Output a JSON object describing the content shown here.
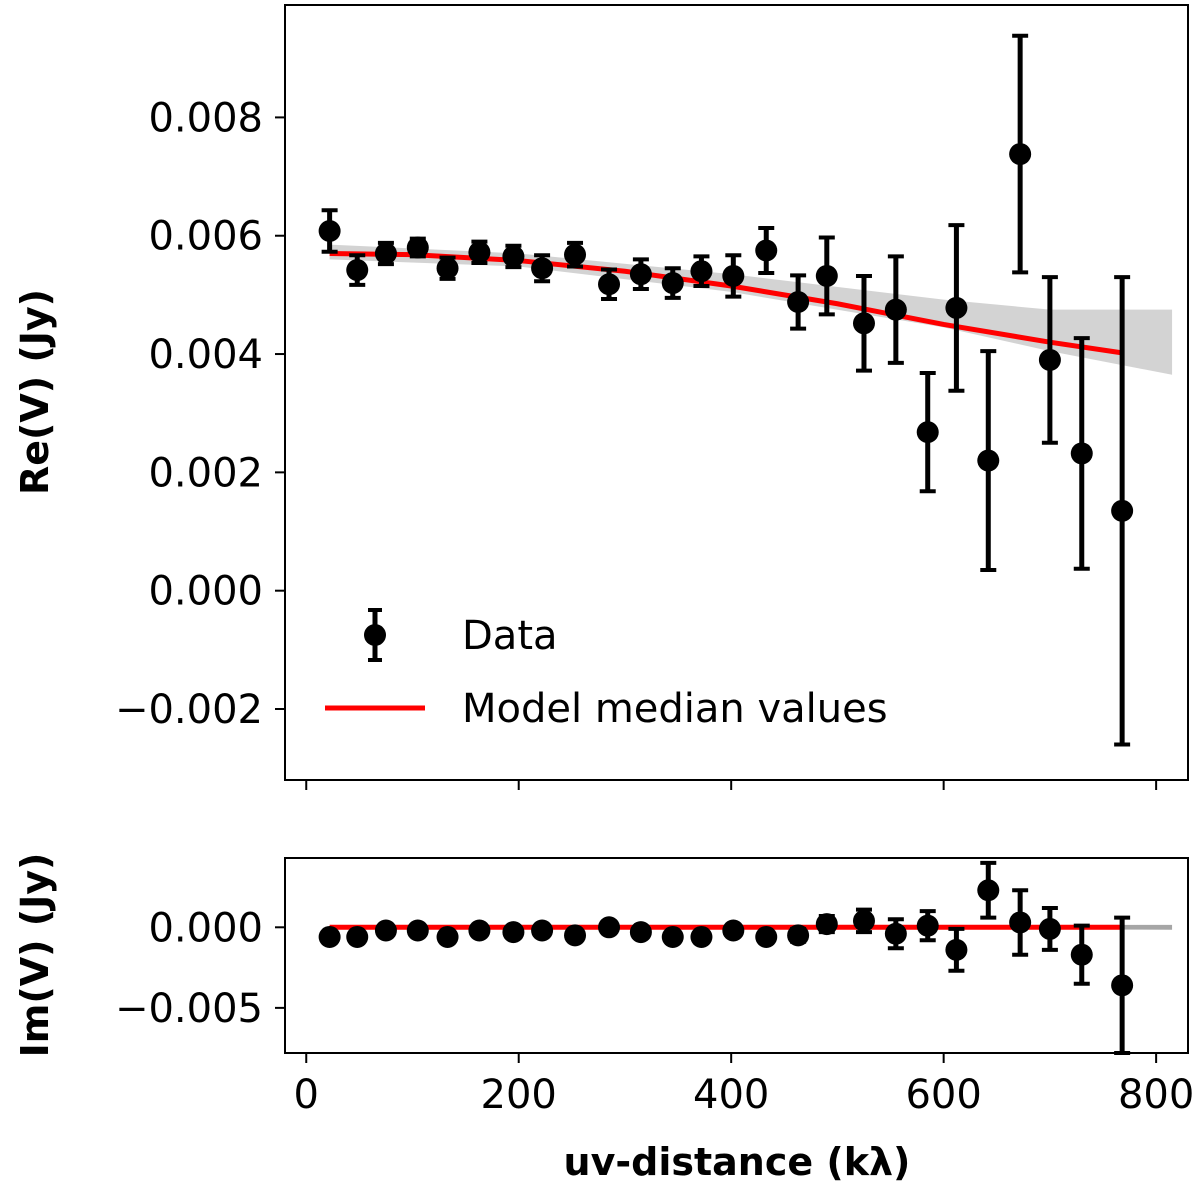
{
  "chart_data": [
    {
      "type": "scatter",
      "panel": "top",
      "xlabel": "",
      "ylabel": "Re(V) (Jy)",
      "xlim": [
        -20,
        830
      ],
      "ylim": [
        -0.0032,
        0.0099
      ],
      "yticks": [
        -0.002,
        0.0,
        0.002,
        0.004,
        0.006,
        0.008
      ],
      "ytick_labels": [
        "−0.002",
        "0.000",
        "0.002",
        "0.004",
        "0.006",
        "0.008"
      ],
      "legend": {
        "placement": "lower-left",
        "entries": [
          {
            "label": "Data",
            "marker": "errorbar",
            "color": "#000000"
          },
          {
            "label": "Model median values",
            "marker": "line",
            "color": "#ff0000"
          }
        ]
      },
      "series": [
        {
          "name": "Data",
          "color": "#000000",
          "x": [
            22,
            48,
            75,
            105,
            133,
            163,
            195,
            222,
            253,
            285,
            315,
            345,
            372,
            402,
            433,
            463,
            490,
            525,
            555,
            585,
            612,
            642,
            672,
            700,
            730,
            768
          ],
          "y": [
            0.00608,
            0.00542,
            0.0057,
            0.0058,
            0.00545,
            0.00572,
            0.00565,
            0.00545,
            0.00568,
            0.00518,
            0.00535,
            0.0052,
            0.0054,
            0.00532,
            0.00575,
            0.00488,
            0.00532,
            0.00452,
            0.00475,
            0.00268,
            0.00478,
            0.0022,
            0.00738,
            0.0039,
            0.00232,
            0.00135
          ],
          "yerr": [
            0.00035,
            0.00025,
            0.00018,
            0.00015,
            0.00018,
            0.00018,
            0.00018,
            0.00022,
            0.0002,
            0.00025,
            0.00025,
            0.00025,
            0.00025,
            0.00035,
            0.00038,
            0.00045,
            0.00065,
            0.0008,
            0.0009,
            0.001,
            0.0014,
            0.00185,
            0.002,
            0.0014,
            0.00195,
            0.00395
          ]
        },
        {
          "name": "Model median values",
          "color": "#ff0000",
          "x": [
            22,
            100,
            200,
            300,
            400,
            500,
            600,
            700,
            768
          ],
          "y": [
            0.0057,
            0.00568,
            0.00558,
            0.0054,
            0.00515,
            0.00485,
            0.0045,
            0.0042,
            0.00402
          ]
        }
      ],
      "posterior_band": {
        "color": "#808080",
        "x": [
          22,
          200,
          400,
          600,
          700,
          815
        ],
        "upper": [
          0.00585,
          0.0057,
          0.00535,
          0.00492,
          0.00475,
          0.00475
        ],
        "lower": [
          0.0056,
          0.00548,
          0.00505,
          0.00445,
          0.00405,
          0.00365
        ]
      }
    },
    {
      "type": "scatter",
      "panel": "bottom",
      "xlabel": "uv-distance (kλ)",
      "ylabel": "Im(V) (Jy)",
      "xlim": [
        -20,
        830
      ],
      "ylim": [
        -0.0078,
        0.0043
      ],
      "xticks": [
        0,
        200,
        400,
        600,
        800
      ],
      "xtick_labels": [
        "0",
        "200",
        "400",
        "600",
        "800"
      ],
      "yticks": [
        -0.005,
        0.0
      ],
      "ytick_labels": [
        "−0.005",
        "0.000"
      ],
      "series": [
        {
          "name": "Data",
          "color": "#000000",
          "x": [
            22,
            48,
            75,
            105,
            133,
            163,
            195,
            222,
            253,
            285,
            315,
            345,
            372,
            402,
            433,
            463,
            490,
            525,
            555,
            585,
            612,
            642,
            672,
            700,
            730,
            768
          ],
          "y": [
            -0.0006,
            -0.0006,
            -0.0002,
            -0.0002,
            -0.0006,
            -0.0002,
            -0.0003,
            -0.0002,
            -0.0005,
            0.0,
            -0.0003,
            -0.0006,
            -0.0006,
            -0.0002,
            -0.0006,
            -0.0005,
            0.0002,
            0.0004,
            -0.0004,
            0.0001,
            -0.0014,
            0.0023,
            0.0003,
            -0.0001,
            -0.0017,
            -0.0036
          ],
          "yerr": [
            0.0002,
            0.0002,
            0.0002,
            0.0002,
            0.0002,
            0.0002,
            0.0002,
            0.0002,
            0.0002,
            0.0002,
            0.0002,
            0.0002,
            0.0002,
            0.0003,
            0.0003,
            0.0004,
            0.0005,
            0.0007,
            0.0009,
            0.0009,
            0.0013,
            0.0017,
            0.002,
            0.0013,
            0.0018,
            0.0042
          ]
        },
        {
          "name": "Model median values",
          "color": "#ff0000",
          "x": [
            22,
            768
          ],
          "y": [
            0.0,
            0.0
          ]
        }
      ],
      "posterior_band": {
        "color": "#808080",
        "x": [
          22,
          815
        ],
        "upper": [
          5e-05,
          0.00015
        ],
        "lower": [
          -5e-05,
          -0.00015
        ]
      }
    }
  ]
}
